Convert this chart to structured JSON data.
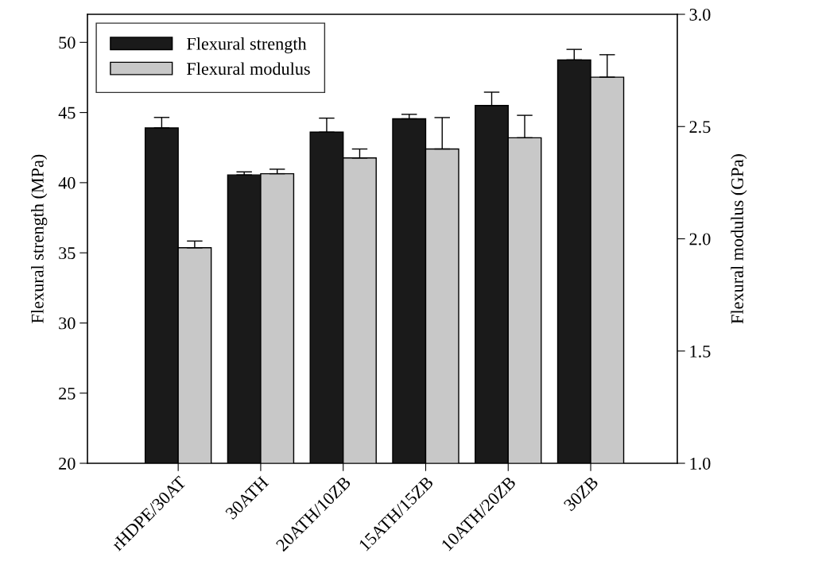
{
  "chart_data": {
    "type": "bar",
    "categories": [
      "rHDPE/30AT",
      "30ATH",
      "20ATH/10ZB",
      "15ATH/15ZB",
      "10ATH/20ZB",
      "30ZB"
    ],
    "ylabel": "Flexural strength (MPa)",
    "y2label": "Flexural modulus (GPa)",
    "ylim": [
      20,
      52
    ],
    "yticks": [
      20,
      25,
      30,
      35,
      40,
      45,
      50
    ],
    "y2lim": [
      1.0,
      3.0
    ],
    "y2ticks": [
      {
        "value": 1.0,
        "label": "1.0"
      },
      {
        "value": 1.5,
        "label": "1.5"
      },
      {
        "value": 2.0,
        "label": "2.0"
      },
      {
        "value": 2.5,
        "label": "2.5"
      },
      {
        "value": 3.0,
        "label": "3.0"
      }
    ],
    "series": [
      {
        "name": "Flexural strength",
        "color": "#1a1a1a",
        "values": [
          43.9,
          40.55,
          43.6,
          44.55,
          45.5,
          48.75
        ],
        "errors": [
          [
            43.9,
            44.65
          ],
          [
            40.55,
            40.77
          ],
          [
            43.6,
            44.6
          ],
          [
            44.55,
            44.87
          ],
          [
            45.5,
            46.45
          ],
          [
            48.75,
            49.5
          ]
        ]
      },
      {
        "name": "Flexural modulus",
        "color": "#c8c8c8",
        "axis": "y2",
        "values": [
          1.96,
          2.29,
          2.36,
          2.4,
          2.45,
          2.72
        ],
        "errors": [
          [
            1.96,
            1.99
          ],
          [
            2.29,
            2.31
          ],
          [
            2.36,
            2.4
          ],
          [
            2.4,
            2.54
          ],
          [
            2.45,
            2.55
          ],
          [
            2.72,
            2.82
          ]
        ]
      }
    ],
    "grid": false,
    "legend": "top left"
  }
}
